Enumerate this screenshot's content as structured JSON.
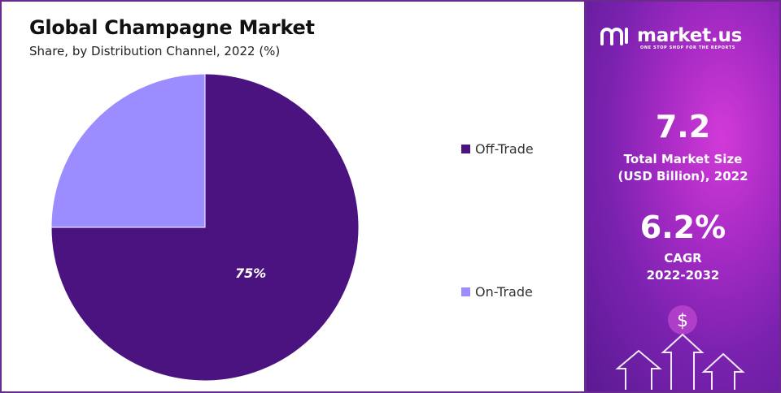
{
  "chart_data": {
    "type": "pie",
    "title": "Global Champagne Market",
    "subtitle": "Share, by Distribution Channel, 2022 (%)",
    "slices": [
      {
        "label": "Off-Trade",
        "value": 75,
        "color": "#4b1380",
        "data_label": "75%"
      },
      {
        "label": "On-Trade",
        "value": 25,
        "color": "#9b8cff",
        "data_label": ""
      }
    ],
    "legend_position": "right"
  },
  "brand": {
    "name": "market.us",
    "tagline": "ONE STOP SHOP FOR THE REPORTS"
  },
  "stats": {
    "market_size_value": "7.2",
    "market_size_label_line1": "Total Market Size",
    "market_size_label_line2": "(USD Billion), 2022",
    "cagr_value": "6.2%",
    "cagr_label_line1": "CAGR",
    "cagr_label_line2": "2022-2032"
  },
  "icons": {
    "dollar_symbol": "$"
  }
}
